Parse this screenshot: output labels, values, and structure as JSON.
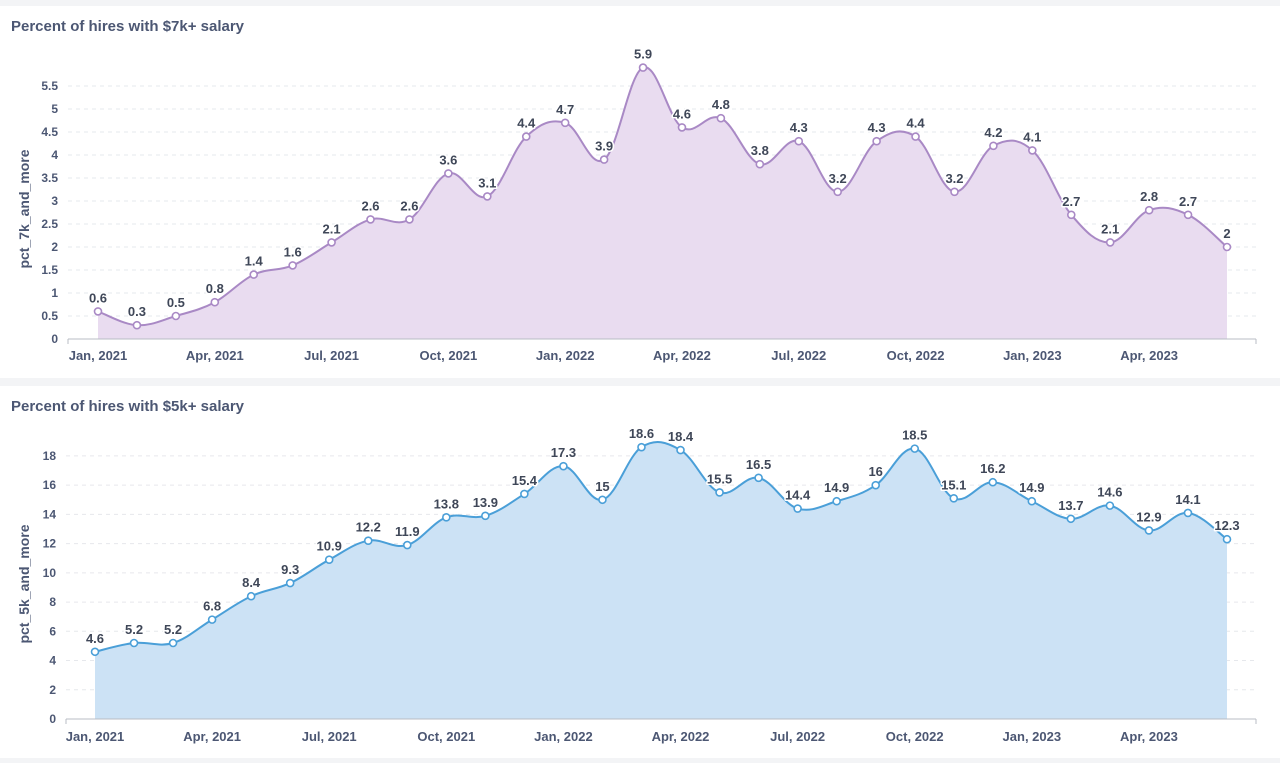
{
  "chart_data": [
    {
      "type": "area",
      "title": "Percent of hires with $7k+ salary",
      "ylabel": "pct_7k_and_more",
      "xlabel": "",
      "ylim": [
        0,
        6
      ],
      "yticks": [
        "0",
        "0.5",
        "1",
        "1.5",
        "2",
        "2.5",
        "3",
        "3.5",
        "4",
        "4.5",
        "5",
        "5.5"
      ],
      "xticks": [
        "Jan, 2021",
        "Apr, 2021",
        "Jul, 2021",
        "Oct, 2021",
        "Jan, 2022",
        "Apr, 2022",
        "Jul, 2022",
        "Oct, 2022",
        "Jan, 2023",
        "Apr, 2023"
      ],
      "x": [
        "2021-01",
        "2021-02",
        "2021-03",
        "2021-04",
        "2021-05",
        "2021-06",
        "2021-07",
        "2021-08",
        "2021-09",
        "2021-10",
        "2021-11",
        "2021-12",
        "2022-01",
        "2022-02",
        "2022-03",
        "2022-04",
        "2022-05",
        "2022-06",
        "2022-07",
        "2022-08",
        "2022-09",
        "2022-10",
        "2022-11",
        "2022-12",
        "2023-01",
        "2023-02",
        "2023-03",
        "2023-04",
        "2023-05",
        "2023-06"
      ],
      "values": [
        0.6,
        0.3,
        0.5,
        0.8,
        1.4,
        1.6,
        2.1,
        2.6,
        2.6,
        3.6,
        3.1,
        4.4,
        4.7,
        3.9,
        5.9,
        4.6,
        4.8,
        3.8,
        4.3,
        3.2,
        4.3,
        4.4,
        3.2,
        4.2,
        4.1,
        2.7,
        2.1,
        2.8,
        2.7,
        2
      ],
      "labels": [
        "0.6",
        "0.3",
        "0.5",
        "0.8",
        "1.4",
        "1.6",
        "2.1",
        "2.6",
        "2.6",
        "3.6",
        "3.1",
        "4.4",
        "4.7",
        "3.9",
        "5.9",
        "4.6",
        "4.8",
        "3.8",
        "4.3",
        "3.2",
        "4.3",
        "4.4",
        "3.2",
        "4.2",
        "4.1",
        "2.7",
        "2.1",
        "2.8",
        "2.7",
        "2"
      ],
      "grid": true,
      "colors": {
        "line": "#a989c5",
        "fill": "#e9dcf0",
        "point_fill": "#ffffff"
      }
    },
    {
      "type": "area",
      "title": "Percent of hires with $5k+ salary",
      "ylabel": "pct_5k_and_more",
      "xlabel": "",
      "ylim": [
        0,
        19.5
      ],
      "yticks": [
        "0",
        "2",
        "4",
        "6",
        "8",
        "10",
        "12",
        "14",
        "16",
        "18"
      ],
      "xticks": [
        "Jan, 2021",
        "Apr, 2021",
        "Jul, 2021",
        "Oct, 2021",
        "Jan, 2022",
        "Apr, 2022",
        "Jul, 2022",
        "Oct, 2022",
        "Jan, 2023",
        "Apr, 2023"
      ],
      "x": [
        "2021-01",
        "2021-02",
        "2021-03",
        "2021-04",
        "2021-05",
        "2021-06",
        "2021-07",
        "2021-08",
        "2021-09",
        "2021-10",
        "2021-11",
        "2021-12",
        "2022-01",
        "2022-02",
        "2022-03",
        "2022-04",
        "2022-05",
        "2022-06",
        "2022-07",
        "2022-08",
        "2022-09",
        "2022-10",
        "2022-11",
        "2022-12",
        "2023-01",
        "2023-02",
        "2023-03",
        "2023-04",
        "2023-05",
        "2023-06"
      ],
      "values": [
        4.6,
        5.2,
        5.2,
        6.8,
        8.4,
        9.3,
        10.9,
        12.2,
        11.9,
        13.8,
        13.9,
        15.4,
        17.3,
        15,
        18.6,
        18.4,
        15.5,
        16.5,
        14.4,
        14.9,
        16,
        18.5,
        15.1,
        16.2,
        14.9,
        13.7,
        14.6,
        12.9,
        14.1,
        12.3
      ],
      "labels": [
        "4.6",
        "5.2",
        "5.2",
        "6.8",
        "8.4",
        "9.3",
        "10.9",
        "12.2",
        "11.9",
        "13.8",
        "13.9",
        "15.4",
        "17.3",
        "15",
        "18.6",
        "18.4",
        "15.5",
        "16.5",
        "14.4",
        "14.9",
        "16",
        "18.5",
        "15.1",
        "16.2",
        "14.9",
        "13.7",
        "14.6",
        "12.9",
        "14.1",
        "12.3"
      ],
      "grid": true,
      "colors": {
        "line": "#4a9fd8",
        "fill": "#cce2f5",
        "point_fill": "#ffffff"
      }
    }
  ]
}
